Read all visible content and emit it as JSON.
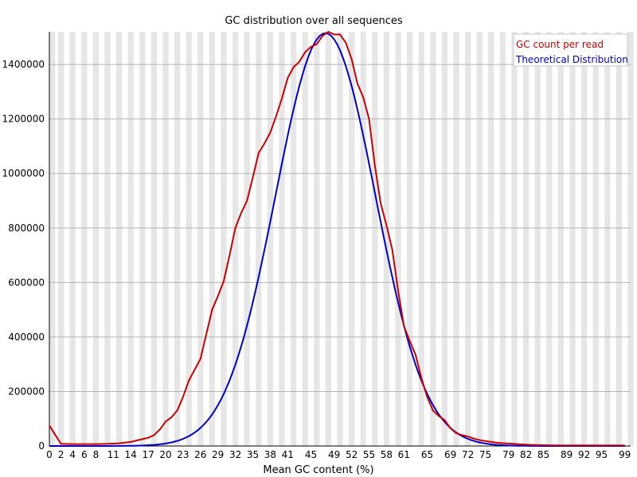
{
  "chart_data": {
    "type": "line",
    "title": "GC distribution over all sequences",
    "xlabel": "Mean GC content (%)",
    "ylabel": "",
    "xlim": [
      0,
      100
    ],
    "ylim": [
      0,
      1520000
    ],
    "grid": true,
    "legend_position": "top-right",
    "x_tick_labels": [
      "0",
      "2",
      "4",
      "6",
      "8",
      "11",
      "14",
      "17",
      "20",
      "23",
      "26",
      "29",
      "32",
      "35",
      "38",
      "41",
      "45",
      "49",
      "52",
      "55",
      "58",
      "61",
      "65",
      "69",
      "72",
      "75",
      "79",
      "82",
      "85",
      "89",
      "92",
      "95",
      "99"
    ],
    "x_tick_positions": [
      0,
      2,
      4,
      6,
      8,
      11,
      14,
      17,
      20,
      23,
      26,
      29,
      32,
      35,
      38,
      41,
      45,
      49,
      52,
      55,
      58,
      61,
      65,
      69,
      72,
      75,
      79,
      82,
      85,
      89,
      92,
      95,
      99
    ],
    "y_ticks": [
      0,
      200000,
      400000,
      600000,
      800000,
      1000000,
      1200000,
      1400000
    ],
    "y_tick_labels": [
      "0",
      "200000",
      "400000",
      "600000",
      "800000",
      "1000000",
      "1200000",
      "1400000"
    ],
    "series": [
      {
        "name": "GC count per read",
        "color": "#cc0000",
        "points": [
          [
            0,
            75000
          ],
          [
            2,
            8000
          ],
          [
            4,
            7000
          ],
          [
            6,
            7000
          ],
          [
            8,
            7000
          ],
          [
            10,
            8000
          ],
          [
            12,
            10000
          ],
          [
            14,
            15000
          ],
          [
            16,
            25000
          ],
          [
            17,
            30000
          ],
          [
            18,
            40000
          ],
          [
            19,
            60000
          ],
          [
            20,
            90000
          ],
          [
            21,
            105000
          ],
          [
            22,
            130000
          ],
          [
            23,
            180000
          ],
          [
            24,
            240000
          ],
          [
            25,
            280000
          ],
          [
            26,
            320000
          ],
          [
            27,
            410000
          ],
          [
            28,
            500000
          ],
          [
            29,
            550000
          ],
          [
            30,
            605000
          ],
          [
            31,
            700000
          ],
          [
            32,
            800000
          ],
          [
            33,
            855000
          ],
          [
            34,
            900000
          ],
          [
            35,
            985000
          ],
          [
            36,
            1075000
          ],
          [
            37,
            1110000
          ],
          [
            38,
            1150000
          ],
          [
            39,
            1210000
          ],
          [
            40,
            1275000
          ],
          [
            41,
            1350000
          ],
          [
            42,
            1390000
          ],
          [
            43,
            1410000
          ],
          [
            44,
            1445000
          ],
          [
            45,
            1465000
          ],
          [
            46,
            1475000
          ],
          [
            47,
            1505000
          ],
          [
            48,
            1520000
          ],
          [
            49,
            1510000
          ],
          [
            50,
            1510000
          ],
          [
            51,
            1480000
          ],
          [
            52,
            1420000
          ],
          [
            53,
            1330000
          ],
          [
            54,
            1280000
          ],
          [
            55,
            1200000
          ],
          [
            56,
            1030000
          ],
          [
            57,
            890000
          ],
          [
            58,
            810000
          ],
          [
            59,
            720000
          ],
          [
            60,
            570000
          ],
          [
            61,
            440000
          ],
          [
            62,
            385000
          ],
          [
            63,
            335000
          ],
          [
            64,
            250000
          ],
          [
            65,
            180000
          ],
          [
            66,
            130000
          ],
          [
            67,
            110000
          ],
          [
            68,
            95000
          ],
          [
            69,
            65000
          ],
          [
            70,
            47000
          ],
          [
            71,
            40000
          ],
          [
            72,
            35000
          ],
          [
            73,
            27000
          ],
          [
            74,
            22000
          ],
          [
            75,
            18000
          ],
          [
            77,
            12000
          ],
          [
            79,
            9000
          ],
          [
            81,
            6000
          ],
          [
            83,
            4000
          ],
          [
            85,
            3000
          ],
          [
            87,
            2000
          ],
          [
            90,
            2000
          ],
          [
            93,
            2000
          ],
          [
            96,
            2000
          ],
          [
            99,
            2000
          ]
        ]
      },
      {
        "name": "Theoretical Distribution",
        "color": "#0000cc",
        "mean": 47.5,
        "sd": 8.6,
        "peak": 1515000,
        "start_x": 0,
        "end_x": 99
      }
    ]
  }
}
